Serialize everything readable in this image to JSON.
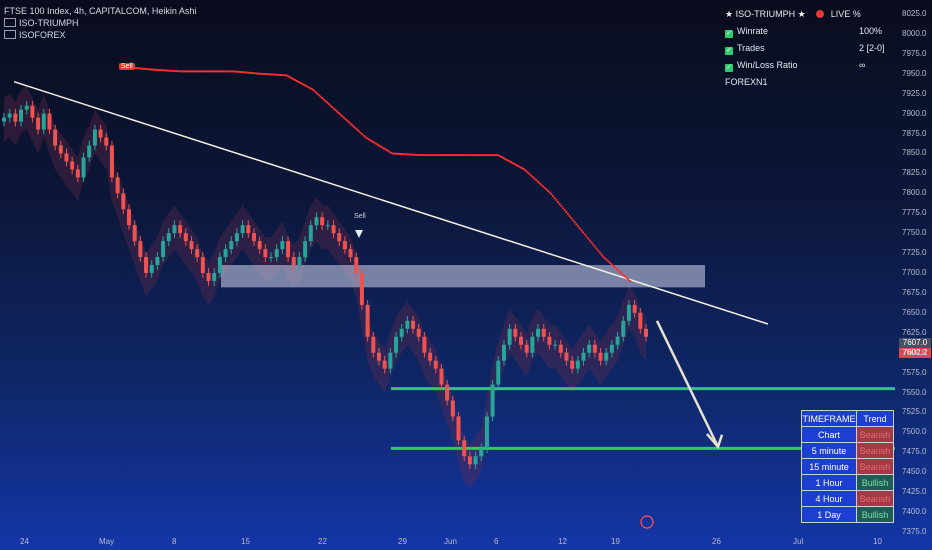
{
  "header": {
    "title": "FTSE 100 Index, 4h, CAPITALCOM, Heikin Ashi",
    "indicators": [
      "ISO-TRIUMPH",
      "ISOFOREX"
    ]
  },
  "stats": {
    "name": "ISO-TRIUMPH",
    "live": "LIVE %",
    "rows": [
      {
        "label": "Winrate",
        "value": "100%"
      },
      {
        "label": "Trades",
        "value": "2 [2-0]"
      },
      {
        "label": "Win/Loss Ratio",
        "value": "∞"
      }
    ],
    "footer": "FOREXN1"
  },
  "trend_table": {
    "headers": [
      "TIMEFRAME",
      "Trend"
    ],
    "rows": [
      {
        "tf": "Chart",
        "trend": "Bearish"
      },
      {
        "tf": "5 minute",
        "trend": "Bearish"
      },
      {
        "tf": "15 minute",
        "trend": "Bearish"
      },
      {
        "tf": "1 Hour",
        "trend": "Bullish"
      },
      {
        "tf": "4 Hour",
        "trend": "Bearish"
      },
      {
        "tf": "1 Day",
        "trend": "Bullish"
      }
    ]
  },
  "price_badges": {
    "current": "7607.0",
    "second": "7602.2"
  },
  "signals": {
    "sell1": "Sell",
    "sell2": "Sell"
  },
  "colors": {
    "bull": "#26a69a",
    "bear": "#ef5350",
    "support": "#34c759",
    "trail": "#ff2d2d"
  },
  "chart_data": {
    "type": "candlestick",
    "title": "FTSE 100 Index, 4h, CAPITALCOM, Heikin Ashi",
    "ylim": [
      7360,
      8035
    ],
    "y_ticks": [
      7375,
      7400,
      7425,
      7450,
      7475,
      7500,
      7525,
      7550,
      7575,
      7600,
      7625,
      7650,
      7675,
      7700,
      7725,
      7750,
      7775,
      7800,
      7825,
      7850,
      7875,
      7900,
      7925,
      7950,
      7975,
      8000,
      8025
    ],
    "x_ticks": [
      "24",
      "May",
      "8",
      "15",
      "22",
      "29",
      "Jun",
      "6",
      "12",
      "19",
      "26",
      "Jul",
      "10"
    ],
    "close_series": [
      7895,
      7900,
      7890,
      7905,
      7910,
      7895,
      7880,
      7900,
      7880,
      7860,
      7850,
      7840,
      7830,
      7820,
      7845,
      7860,
      7880,
      7870,
      7860,
      7820,
      7800,
      7780,
      7760,
      7740,
      7720,
      7700,
      7710,
      7720,
      7740,
      7750,
      7760,
      7750,
      7740,
      7730,
      7720,
      7700,
      7690,
      7700,
      7720,
      7730,
      7740,
      7750,
      7760,
      7750,
      7740,
      7730,
      7720,
      7720,
      7730,
      7740,
      7720,
      7710,
      7720,
      7740,
      7760,
      7770,
      7760,
      7760,
      7750,
      7740,
      7730,
      7720,
      7700,
      7660,
      7620,
      7600,
      7590,
      7580,
      7600,
      7620,
      7630,
      7640,
      7630,
      7620,
      7600,
      7590,
      7580,
      7560,
      7540,
      7520,
      7490,
      7470,
      7460,
      7470,
      7480,
      7520,
      7560,
      7590,
      7610,
      7630,
      7620,
      7610,
      7600,
      7620,
      7630,
      7620,
      7610,
      7610,
      7600,
      7590,
      7580,
      7590,
      7600,
      7610,
      7600,
      7590,
      7600,
      7610,
      7620,
      7640,
      7660,
      7650,
      7630,
      7620
    ],
    "resistance_zone": [
      7682,
      7710
    ],
    "support_levels": [
      7555,
      7480
    ],
    "trendline": [
      7940,
      7636
    ],
    "trailing_stop": [
      7958,
      7955,
      7953,
      7953,
      7953,
      7950,
      7948,
      7930,
      7900,
      7870,
      7850,
      7848,
      7848,
      7848,
      7848,
      7830,
      7800,
      7760,
      7720,
      7690
    ]
  }
}
